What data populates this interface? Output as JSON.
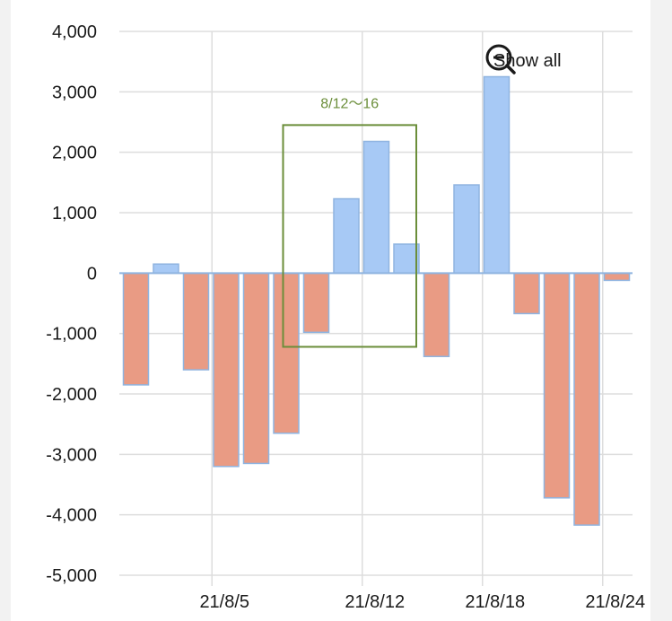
{
  "chart_data": {
    "type": "bar",
    "title": "",
    "xlabel": "",
    "ylabel": "",
    "ylim": [
      -5000,
      4000
    ],
    "yticks": [
      4000,
      3000,
      2000,
      1000,
      0,
      -1000,
      -2000,
      -3000,
      -4000,
      -5000
    ],
    "ytick_labels": [
      "4,000",
      "3,000",
      "2,000",
      "1,000",
      "0",
      "-1,000",
      "-2,000",
      "-3,000",
      "-4,000",
      "-5,000"
    ],
    "x": [
      "2021-08-03",
      "2021-08-04",
      "2021-08-05",
      "2021-08-06",
      "2021-08-09",
      "2021-08-10",
      "2021-08-11",
      "2021-08-12",
      "2021-08-13",
      "2021-08-16",
      "2021-08-17",
      "2021-08-18",
      "2021-08-19",
      "2021-08-20",
      "2021-08-23",
      "2021-08-24",
      "2021-08-25",
      "2021-08-26"
    ],
    "values": [
      -1850,
      150,
      -1600,
      -3200,
      -3150,
      -2650,
      -980,
      1230,
      2180,
      480,
      -1380,
      1460,
      3250,
      -670,
      -3720,
      -4170,
      -120,
      0
    ],
    "xtick_labels": [
      "21/8/5",
      "21/8/12",
      "21/8/18",
      "21/8/24"
    ],
    "xtick_dates": [
      "2021-08-05",
      "2021-08-12",
      "2021-08-18",
      "2021-08-24"
    ],
    "colors": {
      "positive": "#a7c9f5",
      "negative": "#e99b84",
      "bar_edge": "#8fb4e0",
      "annotation": "#6b8e3a",
      "grid": "#dddddd",
      "zero_line": "#8fb4e0"
    },
    "annotation": {
      "label": "8/12～16",
      "y_range": [
        -1220,
        2450
      ]
    },
    "grid": true,
    "legend": "none"
  },
  "controls": {
    "show_all_label": "Show all",
    "show_all_icon": "zoom-out-icon"
  }
}
